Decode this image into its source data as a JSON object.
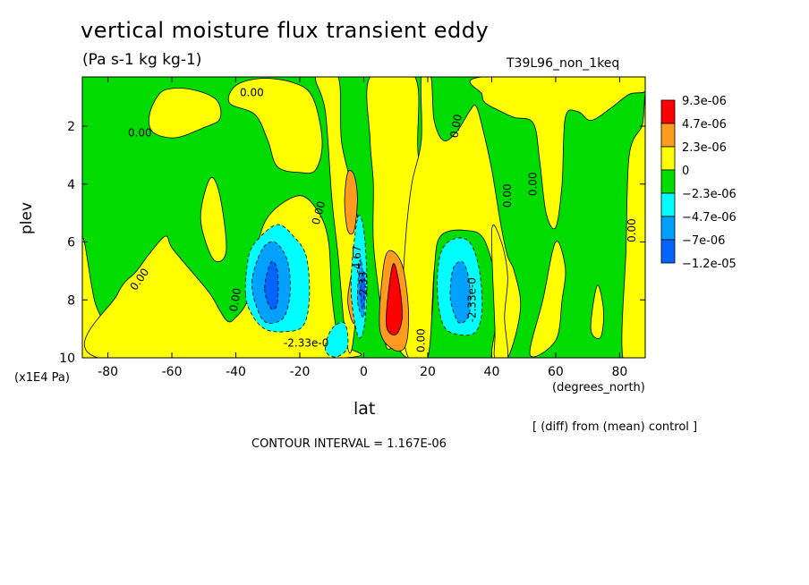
{
  "header": {
    "title": "vertical moisture flux transient eddy",
    "units": "(Pa s-1 kg kg-1)",
    "run_name": "T39L96_non_1keq"
  },
  "footer": {
    "y_units": "(x1E4 Pa)",
    "x_units": "(degrees_north)",
    "difference_note": "[ (diff) from (mean) control ]",
    "contour_interval": "CONTOUR INTERVAL = 1.167E-06"
  },
  "chart_data": {
    "type": "heatmap",
    "title": "vertical moisture flux transient eddy",
    "subtitle": "(Pa s-1 kg kg-1)",
    "xlabel": "lat",
    "ylabel": "plev",
    "xlim": [
      -88,
      88
    ],
    "ylim": [
      10,
      0.3
    ],
    "x_ticks": [
      -80,
      -60,
      -40,
      -20,
      0,
      20,
      40,
      60,
      80
    ],
    "y_ticks": [
      2,
      4,
      6,
      8,
      10
    ],
    "y_inverted": true,
    "grid": false,
    "colorbar": {
      "labels": [
        "9.3e-06",
        "4.7e-06",
        "2.3e-06",
        "0",
        "−2.3e-06",
        "−4.7e-06",
        "−7e-06",
        "−1.2e-05"
      ],
      "colors": [
        "#ff0000",
        "#ff9b1e",
        "#ffff00",
        "#00dc00",
        "#00ffff",
        "#00a0ff",
        "#0064ff"
      ]
    },
    "background_color": "#00dc00",
    "regions": [
      {
        "level": "yellow",
        "color": "#ffff00",
        "points": [
          [
            -67,
            1.6
          ],
          [
            -64,
            0.9
          ],
          [
            -60,
            0.7
          ],
          [
            -53,
            0.75
          ],
          [
            -46,
            1.1
          ],
          [
            -45,
            1.75
          ],
          [
            -50,
            2.05
          ],
          [
            -59,
            2.4
          ],
          [
            -66,
            2.2
          ]
        ]
      },
      {
        "level": "yellow",
        "color": "#ffff00",
        "points": [
          [
            -42,
            1.2
          ],
          [
            -40,
            0.6
          ],
          [
            -32,
            0.35
          ],
          [
            -22,
            0.5
          ],
          [
            -16,
            1.0
          ],
          [
            -13,
            2.5
          ],
          [
            -15,
            3.5
          ],
          [
            -20,
            3.6
          ],
          [
            -27,
            3.4
          ],
          [
            -30,
            2.5
          ],
          [
            -34,
            1.6
          ]
        ]
      },
      {
        "level": "yellow",
        "color": "#ffff00",
        "points": [
          [
            -88,
            5.9
          ],
          [
            -84,
            8.1
          ],
          [
            -79,
            9.2
          ],
          [
            -78,
            10
          ],
          [
            -88,
            10
          ]
        ]
      },
      {
        "level": "yellow",
        "color": "#ffff00",
        "points": [
          [
            -83,
            10
          ],
          [
            -77,
            7.8
          ],
          [
            -71,
            7.0
          ],
          [
            -67,
            6.4
          ],
          [
            -62,
            5.8
          ],
          [
            -60,
            6.2
          ],
          [
            -54,
            7.0
          ],
          [
            -48,
            7.8
          ],
          [
            -43,
            8.7
          ],
          [
            -40,
            8.6
          ],
          [
            -36,
            7.9
          ],
          [
            -33,
            6.0
          ],
          [
            -29,
            5.0
          ],
          [
            -20,
            4.4
          ],
          [
            -14,
            5.0
          ],
          [
            -11,
            6.0
          ],
          [
            -10,
            7.8
          ],
          [
            -8,
            9.4
          ],
          [
            -6,
            10
          ]
        ]
      },
      {
        "level": "yellow",
        "color": "#ffff00",
        "points": [
          [
            -51,
            5.2
          ],
          [
            -48,
            3.8
          ],
          [
            -45,
            4.4
          ],
          [
            -43,
            6.3
          ],
          [
            -47,
            6.6
          ]
        ]
      },
      {
        "level": "yellow",
        "color": "#ffff00",
        "points": [
          [
            -15,
            0.3
          ],
          [
            -12,
            1.5
          ],
          [
            -10,
            4.5
          ],
          [
            -8,
            6.5
          ],
          [
            -6,
            9.0
          ],
          [
            -4,
            9.8
          ],
          [
            -2,
            8.0
          ],
          [
            -1,
            6.0
          ],
          [
            -4,
            4.0
          ],
          [
            -7,
            2.5
          ],
          [
            -8,
            0.3
          ]
        ]
      },
      {
        "level": "yellow",
        "color": "#ffff00",
        "points": [
          [
            2,
            0.3
          ],
          [
            2,
            2.5
          ],
          [
            3,
            4.0
          ],
          [
            3,
            6.0
          ],
          [
            5,
            8.0
          ],
          [
            7,
            9.6
          ],
          [
            10,
            9.6
          ],
          [
            14,
            10
          ],
          [
            20,
            9.5
          ],
          [
            22,
            7.0
          ],
          [
            21,
            5.0
          ],
          [
            17,
            3.0
          ],
          [
            16,
            0.3
          ]
        ]
      },
      {
        "level": "yellow",
        "color": "#ffff00",
        "points": [
          [
            21,
            0.3
          ],
          [
            22,
            1.8
          ],
          [
            25,
            2.5
          ],
          [
            29,
            2.2
          ],
          [
            33,
            1.5
          ],
          [
            35,
            1.3
          ],
          [
            37,
            2.0
          ],
          [
            40,
            3.5
          ],
          [
            43,
            5.5
          ],
          [
            45,
            6.5
          ],
          [
            47,
            7.0
          ],
          [
            49,
            8.3
          ],
          [
            45,
            10
          ],
          [
            40,
            10
          ],
          [
            42,
            8.0
          ],
          [
            38,
            6.0
          ],
          [
            32,
            5.6
          ],
          [
            24,
            5.8
          ],
          [
            22,
            7.0
          ],
          [
            20,
            10
          ],
          [
            14,
            10
          ],
          [
            12,
            8.5
          ],
          [
            13,
            6.0
          ],
          [
            15,
            4.0
          ],
          [
            18,
            2.5
          ],
          [
            18,
            0.3
          ]
        ]
      },
      {
        "level": "yellow",
        "color": "#ffff00",
        "points": [
          [
            37,
            0.9
          ],
          [
            38,
            1.2
          ],
          [
            43,
            1.5
          ],
          [
            47,
            1.7
          ],
          [
            53,
            1.9
          ],
          [
            55,
            3.2
          ],
          [
            57,
            5.0
          ],
          [
            60,
            5.5
          ],
          [
            62,
            4.0
          ],
          [
            63,
            1.7
          ],
          [
            67,
            1.5
          ],
          [
            71,
            1.8
          ],
          [
            77,
            1.4
          ],
          [
            83,
            0.9
          ],
          [
            88,
            0.8
          ],
          [
            88,
            0.3
          ],
          [
            37,
            0.3
          ]
        ]
      },
      {
        "level": "yellow",
        "color": "#ffff00",
        "points": [
          [
            40,
            5.6
          ],
          [
            43,
            6.0
          ],
          [
            45,
            7.2
          ],
          [
            44,
            8.6
          ],
          [
            45,
            10
          ],
          [
            41,
            10
          ],
          [
            41,
            9.0
          ]
        ]
      },
      {
        "level": "yellow",
        "color": "#ffff00",
        "points": [
          [
            81,
            10
          ],
          [
            82,
            6.2
          ],
          [
            83,
            3.0
          ],
          [
            87,
            2.0
          ],
          [
            88,
            1.5
          ],
          [
            88,
            10
          ]
        ]
      },
      {
        "level": "yellow",
        "color": "#ffff00",
        "points": [
          [
            71,
            9.0
          ],
          [
            73,
            7.5
          ],
          [
            75,
            8.4
          ],
          [
            74,
            9.3
          ]
        ]
      },
      {
        "level": "yellow",
        "color": "#ffff00",
        "points": [
          [
            52,
            9.9
          ],
          [
            56,
            8.0
          ],
          [
            60,
            6.0
          ],
          [
            63,
            6.9
          ],
          [
            62,
            8.0
          ],
          [
            60,
            9.4
          ]
        ]
      },
      {
        "level": "orange",
        "color": "#ff9b1e",
        "points": [
          [
            -6,
            4.6
          ],
          [
            -5,
            3.6
          ],
          [
            -3,
            3.7
          ],
          [
            -2,
            4.5
          ],
          [
            -3,
            5.6
          ],
          [
            -5,
            5.6
          ]
        ]
      },
      {
        "level": "orange",
        "color": "#ff9b1e",
        "points": [
          [
            5,
            9.0
          ],
          [
            6,
            7.0
          ],
          [
            8,
            6.3
          ],
          [
            12,
            6.8
          ],
          [
            14,
            8.4
          ],
          [
            13,
            9.6
          ],
          [
            9,
            9.7
          ]
        ]
      },
      {
        "level": "orange",
        "color": "#ff9b1e",
        "points": [
          [
            -5,
            8.0
          ],
          [
            -3,
            6.8
          ],
          [
            -2,
            7.5
          ],
          [
            -3,
            8.8
          ]
        ]
      },
      {
        "level": "red",
        "color": "#ff0000",
        "points": [
          [
            7,
            8.8
          ],
          [
            9,
            6.8
          ],
          [
            11,
            7.4
          ],
          [
            12,
            8.6
          ],
          [
            10,
            9.2
          ]
        ]
      },
      {
        "level": "cyan",
        "color": "#00ffff",
        "points": [
          [
            -37,
            7.8
          ],
          [
            -36,
            6.5
          ],
          [
            -33,
            5.9
          ],
          [
            -27,
            5.4
          ],
          [
            -22,
            5.8
          ],
          [
            -18,
            6.5
          ],
          [
            -17,
            7.9
          ],
          [
            -19,
            8.9
          ],
          [
            -25,
            9.1
          ],
          [
            -31,
            9.0
          ],
          [
            -35,
            8.5
          ]
        ]
      },
      {
        "level": "cyan",
        "color": "#00ffff",
        "points": [
          [
            -12,
            9.6
          ],
          [
            -10,
            9.0
          ],
          [
            -6,
            8.8
          ],
          [
            -5,
            9.6
          ],
          [
            -8,
            9.95
          ],
          [
            -11,
            9.9
          ]
        ]
      },
      {
        "level": "cyan",
        "color": "#00ffff",
        "points": [
          [
            -4,
            7.5
          ],
          [
            -2,
            5.2
          ],
          [
            0,
            5.6
          ],
          [
            1,
            7.5
          ],
          [
            0,
            9.0
          ],
          [
            -2,
            9.2
          ]
        ]
      },
      {
        "level": "cyan",
        "color": "#00ffff",
        "points": [
          [
            23,
            7.7
          ],
          [
            24,
            6.4
          ],
          [
            28,
            5.9
          ],
          [
            33,
            6.0
          ],
          [
            36,
            6.9
          ],
          [
            37,
            8.3
          ],
          [
            35,
            9.1
          ],
          [
            30,
            9.2
          ],
          [
            25,
            8.9
          ]
        ]
      },
      {
        "level": "blue",
        "color": "#00a0ff",
        "points": [
          [
            -35,
            7.4
          ],
          [
            -32,
            6.3
          ],
          [
            -28,
            6.0
          ],
          [
            -24,
            6.6
          ],
          [
            -23,
            7.7
          ],
          [
            -25,
            8.6
          ],
          [
            -30,
            8.8
          ],
          [
            -33,
            8.4
          ]
        ]
      },
      {
        "level": "blue",
        "color": "#00a0ff",
        "points": [
          [
            -2,
            8.0
          ],
          [
            -1,
            6.6
          ],
          [
            0,
            7.6
          ],
          [
            0,
            8.6
          ]
        ]
      },
      {
        "level": "blue",
        "color": "#00a0ff",
        "points": [
          [
            27,
            7.8
          ],
          [
            28,
            6.9
          ],
          [
            31,
            6.7
          ],
          [
            33,
            7.4
          ],
          [
            33,
            8.5
          ],
          [
            30,
            8.8
          ],
          [
            28,
            8.4
          ]
        ]
      },
      {
        "level": "darkblue",
        "color": "#0064ff",
        "points": [
          [
            -31,
            7.6
          ],
          [
            -29,
            6.7
          ],
          [
            -27,
            7.0
          ],
          [
            -27,
            8.1
          ],
          [
            -29,
            8.3
          ]
        ]
      },
      {
        "level": "darkblue",
        "color": "#0064ff",
        "points": [
          [
            -1,
            7.6
          ],
          [
            0,
            7.0
          ],
          [
            0.5,
            7.9
          ],
          [
            -0.5,
            8.3
          ]
        ]
      }
    ],
    "contour_labels": [
      {
        "text": "0.00",
        "lat": -35,
        "plev": 0.85,
        "angle": 0
      },
      {
        "text": "0.00",
        "lat": -70,
        "plev": 2.25,
        "angle": 0
      },
      {
        "text": "0.00",
        "lat": -70,
        "plev": 7.3,
        "angle": -55
      },
      {
        "text": "0.00",
        "lat": -40,
        "plev": 8.0,
        "angle": -80
      },
      {
        "text": "0.00",
        "lat": -14,
        "plev": 5.0,
        "angle": -75
      },
      {
        "text": "0.00",
        "lat": 29,
        "plev": 2.0,
        "angle": -80
      },
      {
        "text": "0.00",
        "lat": 45,
        "plev": 4.4,
        "angle": -90
      },
      {
        "text": "0.00",
        "lat": 53,
        "plev": 4.0,
        "angle": -90
      },
      {
        "text": "0.00",
        "lat": 84,
        "plev": 5.6,
        "angle": -90
      },
      {
        "text": "0.00",
        "lat": 18,
        "plev": 9.4,
        "angle": -90
      },
      {
        "text": "-2.33e-0",
        "lat": -18,
        "plev": 9.5,
        "angle": 0
      },
      {
        "text": "-2.33e-0",
        "lat": 34,
        "plev": 8.0,
        "angle": -90
      },
      {
        "text": "-2.33",
        "lat": 0,
        "plev": 7.5,
        "angle": -90
      },
      {
        "text": "-4.67",
        "lat": -2,
        "plev": 6.6,
        "angle": -90
      }
    ]
  }
}
